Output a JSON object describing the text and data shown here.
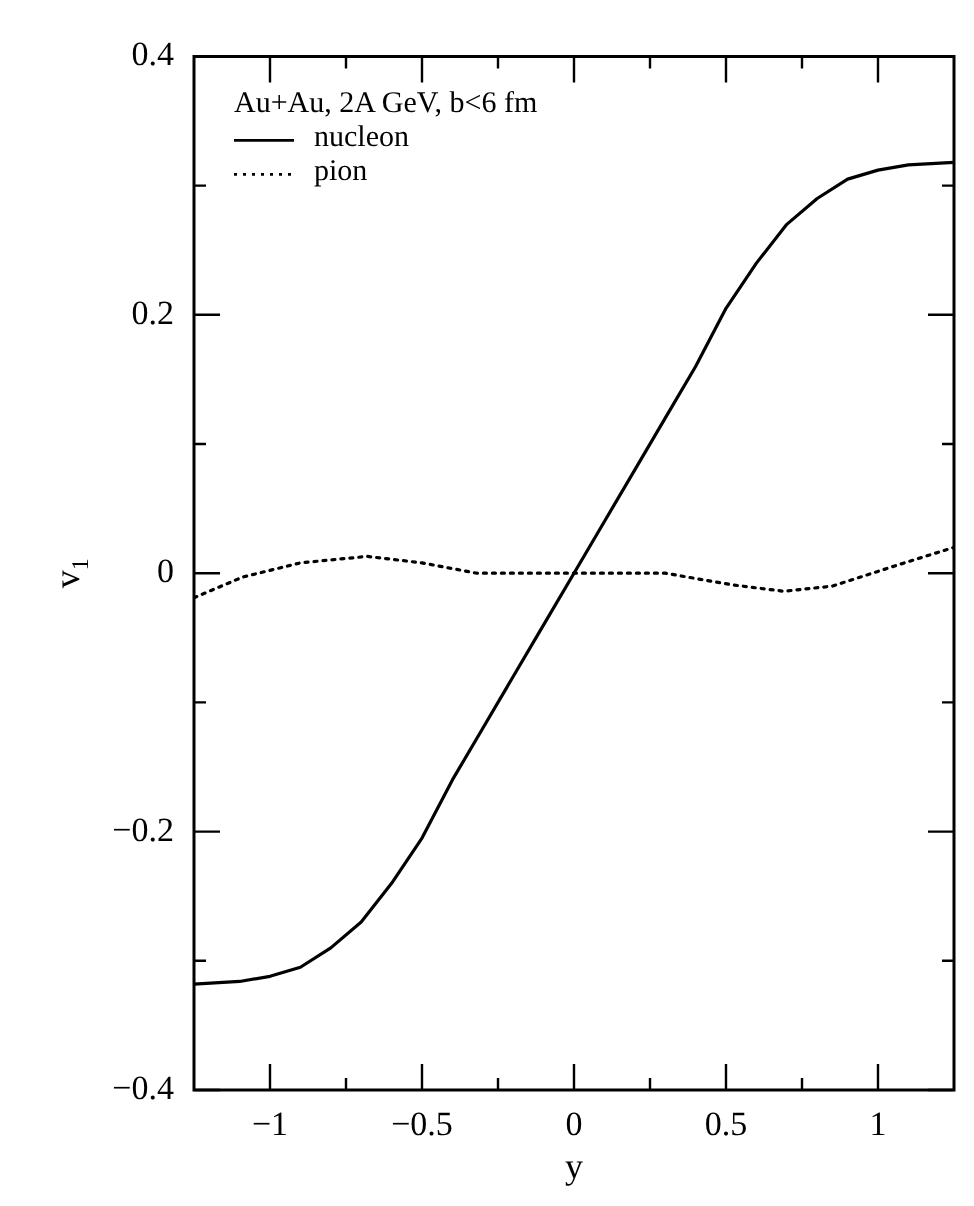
{
  "chart_data": {
    "type": "line",
    "xlabel": "y",
    "ylabel": "v$_{1}$",
    "legend_title": "Au+Au, 2A GeV, b<6 fm",
    "legend": "top left",
    "grid": false,
    "marker": "none",
    "xlim": [
      -1.25,
      1.25
    ],
    "ylim": [
      -0.4,
      0.4
    ],
    "xticks": [
      -1,
      {
        "value": -0.75,
        "label": null
      },
      -0.5,
      {
        "value": -0.25,
        "label": null
      },
      0,
      {
        "value": 0.25,
        "label": null
      },
      0.5,
      {
        "value": 0.75,
        "label": null
      },
      1
    ],
    "yticks": [
      -0.4,
      {
        "value": -0.3,
        "label": null
      },
      -0.2,
      {
        "value": -0.1,
        "label": null
      },
      0,
      {
        "value": 0.1,
        "label": null
      },
      0.2,
      {
        "value": 0.3,
        "label": null
      },
      0.4
    ],
    "series": [
      {
        "name": "nucleon",
        "color": "#000000",
        "line_style": "solid",
        "x": [
          -1.25,
          -1.1,
          -1,
          -0.9,
          -0.8,
          -0.7,
          -0.6,
          -0.5,
          -0.4,
          -0.3,
          -0.2,
          -0.1,
          0,
          0.1,
          0.2,
          0.3,
          0.4,
          0.5,
          0.6,
          0.7,
          0.8,
          0.9,
          1,
          1.1,
          1.25
        ],
        "values": [
          -0.318,
          -0.316,
          -0.312,
          -0.305,
          -0.29,
          -0.27,
          -0.24,
          -0.205,
          -0.16,
          -0.12,
          -0.08,
          -0.04,
          0,
          0.04,
          0.08,
          0.12,
          0.16,
          0.205,
          0.24,
          0.27,
          0.29,
          0.305,
          0.312,
          0.316,
          0.318
        ]
      },
      {
        "name": "pion",
        "color": "#000000",
        "line_style": "dotted",
        "x": [
          -1.25,
          -1.09,
          -0.9,
          -0.68,
          -0.5,
          -0.32,
          -0.1,
          0.1,
          0.3,
          0.52,
          0.69,
          0.85,
          1.06,
          1.25
        ],
        "values": [
          -0.019,
          -0.003,
          0.008,
          0.013,
          0.008,
          0,
          0,
          0,
          0,
          -0.009,
          -0.014,
          -0.01,
          0.006,
          0.02
        ]
      }
    ]
  }
}
